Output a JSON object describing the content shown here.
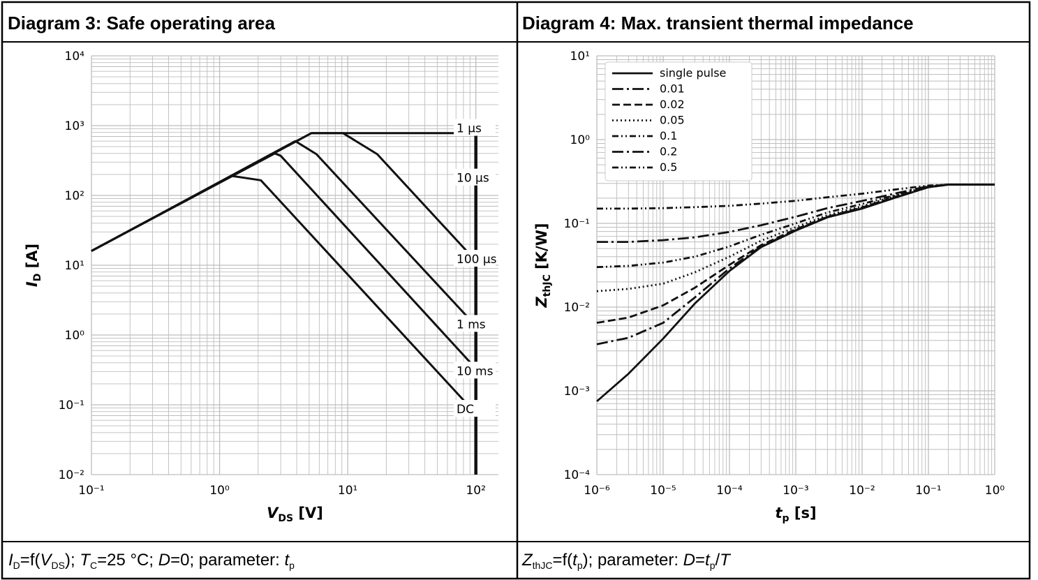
{
  "panels": [
    {
      "title": "Diagram 3: Safe operating area",
      "caption": {
        "p1": "I",
        "s1": "D",
        "p2": "=f(",
        "p3": "V",
        "s3": "DS",
        "p4": "); ",
        "p5": "T",
        "s5": "C",
        "p6": "=25 °C; ",
        "p7": "D",
        "p8": "=0; parameter: ",
        "p9": "t",
        "s9": "p"
      }
    },
    {
      "title": "Diagram 4: Max. transient thermal impedance",
      "caption": {
        "p1": "Z",
        "s1": "thJC",
        "p2": "=f(",
        "p3": "t",
        "s3": "p",
        "p4": "); parameter: ",
        "p5": "D",
        "p6": "=",
        "p7": "t",
        "s7": "p",
        "p8": "/",
        "p9": "T"
      }
    }
  ],
  "chart_data": [
    {
      "type": "line",
      "xscale": "log",
      "yscale": "log",
      "xlim": [
        0.1,
        150
      ],
      "ylim": [
        0.01,
        10000
      ],
      "xticks": [
        0.1,
        1,
        10,
        100
      ],
      "yticks": [
        0.01,
        0.1,
        1,
        10,
        100,
        1000,
        10000
      ],
      "xlabel": {
        "main": "V",
        "sub": "DS",
        "unit": " [V]"
      },
      "ylabel": {
        "main": "I",
        "sub": "D",
        "unit": " [A]"
      },
      "grid": true,
      "series": [
        {
          "name": "1 µs",
          "points": [
            [
              0.1,
              16
            ],
            [
              5.2,
              780
            ],
            [
              100,
              780
            ],
            [
              100,
              380
            ]
          ]
        },
        {
          "name": "10 µs",
          "points": [
            [
              0.1,
              16
            ],
            [
              5.2,
              780
            ],
            [
              9.2,
              780
            ],
            [
              17,
              390
            ],
            [
              100,
              11.5
            ]
          ]
        },
        {
          "name": "100 µs",
          "points": [
            [
              0.1,
              16
            ],
            [
              3.9,
              600
            ],
            [
              5.7,
              390
            ],
            [
              100,
              1.35
            ]
          ]
        },
        {
          "name": "1 ms",
          "points": [
            [
              0.1,
              16
            ],
            [
              2.7,
              400
            ],
            [
              3,
              370
            ],
            [
              100,
              0.33
            ]
          ]
        },
        {
          "name": "10 ms",
          "points": [
            [
              0.1,
              16
            ],
            [
              1.25,
              190
            ],
            [
              2.1,
              165
            ],
            [
              100,
              0.075
            ]
          ]
        },
        {
          "name": "DC",
          "points": [
            [
              100,
              780
            ],
            [
              100,
              0.01
            ]
          ]
        }
      ]
    },
    {
      "type": "line",
      "xscale": "log",
      "yscale": "log",
      "xlim": [
        1e-06,
        1
      ],
      "ylim": [
        0.0001,
        10
      ],
      "xticks": [
        1e-06,
        1e-05,
        0.0001,
        0.001,
        0.01,
        0.1,
        1
      ],
      "yticks": [
        0.0001,
        0.001,
        0.01,
        0.1,
        1,
        10
      ],
      "xlabel": {
        "main": "t",
        "sub": "p",
        "unit": " [s]"
      },
      "ylabel": {
        "main": "Z",
        "sub": "thJC",
        "unit": " [K/W]"
      },
      "grid": true,
      "legend": "top-left",
      "series": [
        {
          "name": "single pulse",
          "dash": "solid",
          "points": [
            [
              1e-06,
              0.00075
            ],
            [
              3e-06,
              0.0016
            ],
            [
              1e-05,
              0.0042
            ],
            [
              3e-05,
              0.011
            ],
            [
              0.0001,
              0.027
            ],
            [
              0.0003,
              0.052
            ],
            [
              0.001,
              0.082
            ],
            [
              0.003,
              0.118
            ],
            [
              0.01,
              0.15
            ],
            [
              0.03,
              0.2
            ],
            [
              0.1,
              0.27
            ],
            [
              0.2,
              0.29
            ],
            [
              1,
              0.29
            ]
          ]
        },
        {
          "name": "0.01",
          "dash": "long-dash-dot",
          "points": [
            [
              1e-06,
              0.0036
            ],
            [
              3e-06,
              0.0043
            ],
            [
              1e-05,
              0.0065
            ],
            [
              3e-05,
              0.013
            ],
            [
              0.0001,
              0.029
            ],
            [
              0.0003,
              0.053
            ],
            [
              0.001,
              0.083
            ],
            [
              0.003,
              0.119
            ],
            [
              0.01,
              0.152
            ],
            [
              0.03,
              0.2
            ],
            [
              0.1,
              0.27
            ],
            [
              0.2,
              0.29
            ],
            [
              1,
              0.29
            ]
          ]
        },
        {
          "name": "0.02",
          "dash": "dashed",
          "points": [
            [
              1e-06,
              0.0065
            ],
            [
              3e-06,
              0.0075
            ],
            [
              1e-05,
              0.0105
            ],
            [
              3e-05,
              0.017
            ],
            [
              0.0001,
              0.032
            ],
            [
              0.0003,
              0.055
            ],
            [
              0.001,
              0.085
            ],
            [
              0.003,
              0.12
            ],
            [
              0.01,
              0.155
            ],
            [
              0.03,
              0.205
            ],
            [
              0.1,
              0.27
            ],
            [
              0.2,
              0.29
            ],
            [
              1,
              0.29
            ]
          ]
        },
        {
          "name": "0.05",
          "dash": "dotted",
          "points": [
            [
              1e-06,
              0.0155
            ],
            [
              3e-06,
              0.0165
            ],
            [
              1e-05,
              0.019
            ],
            [
              3e-05,
              0.026
            ],
            [
              0.0001,
              0.04
            ],
            [
              0.0003,
              0.062
            ],
            [
              0.001,
              0.09
            ],
            [
              0.003,
              0.125
            ],
            [
              0.01,
              0.16
            ],
            [
              0.03,
              0.21
            ],
            [
              0.1,
              0.272
            ],
            [
              0.2,
              0.29
            ],
            [
              1,
              0.29
            ]
          ]
        },
        {
          "name": "0.1",
          "dash": "dash-dot-dot",
          "points": [
            [
              1e-06,
              0.03
            ],
            [
              3e-06,
              0.031
            ],
            [
              1e-05,
              0.034
            ],
            [
              3e-05,
              0.04
            ],
            [
              0.0001,
              0.053
            ],
            [
              0.0003,
              0.073
            ],
            [
              0.001,
              0.1
            ],
            [
              0.003,
              0.135
            ],
            [
              0.01,
              0.17
            ],
            [
              0.03,
              0.215
            ],
            [
              0.1,
              0.275
            ],
            [
              0.2,
              0.29
            ],
            [
              1,
              0.29
            ]
          ]
        },
        {
          "name": "0.2",
          "dash": "long-dash-dot",
          "points": [
            [
              1e-06,
              0.06
            ],
            [
              3e-06,
              0.06
            ],
            [
              1e-05,
              0.063
            ],
            [
              3e-05,
              0.068
            ],
            [
              0.0001,
              0.079
            ],
            [
              0.0003,
              0.095
            ],
            [
              0.001,
              0.12
            ],
            [
              0.003,
              0.152
            ],
            [
              0.01,
              0.185
            ],
            [
              0.03,
              0.225
            ],
            [
              0.1,
              0.278
            ],
            [
              0.2,
              0.29
            ],
            [
              1,
              0.29
            ]
          ]
        },
        {
          "name": "0.5",
          "dash": "dash-dot-dot",
          "points": [
            [
              1e-06,
              0.15
            ],
            [
              3e-06,
              0.15
            ],
            [
              1e-05,
              0.152
            ],
            [
              3e-05,
              0.156
            ],
            [
              0.0001,
              0.162
            ],
            [
              0.0003,
              0.172
            ],
            [
              0.001,
              0.186
            ],
            [
              0.003,
              0.205
            ],
            [
              0.01,
              0.226
            ],
            [
              0.03,
              0.252
            ],
            [
              0.1,
              0.283
            ],
            [
              0.2,
              0.29
            ],
            [
              1,
              0.29
            ]
          ]
        }
      ]
    }
  ]
}
